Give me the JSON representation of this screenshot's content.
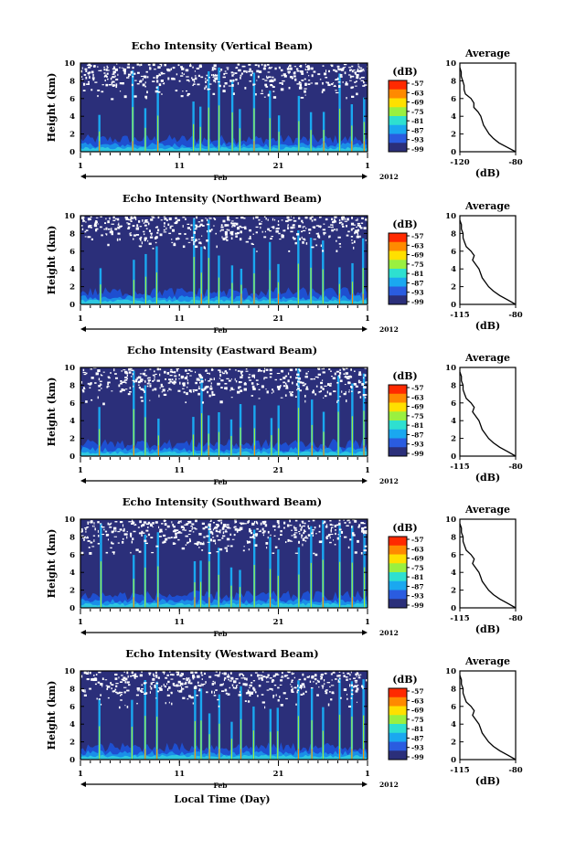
{
  "chart_data": {
    "type": "heatmap",
    "x_axis": {
      "label": "Local Time (Day)",
      "month_label": "Feb",
      "year_label": "2012",
      "ticks": [
        "1",
        "11",
        "21",
        "1"
      ],
      "range_days": [
        1,
        30
      ]
    },
    "y_axis": {
      "label": "Height (km)",
      "ticks": [
        "0",
        "2",
        "4",
        "6",
        "8",
        "10"
      ],
      "range": [
        0,
        10
      ]
    },
    "colorbar": {
      "label": "(dB)",
      "ticks": [
        "-57",
        "-63",
        "-69",
        "-75",
        "-81",
        "-87",
        "-93",
        "-99"
      ],
      "colors": [
        "#ff2a00",
        "#ff8a00",
        "#ffe000",
        "#9af040",
        "#2ee0d0",
        "#1aa8f0",
        "#2a5ce0",
        "#2b2f7a"
      ]
    },
    "panels": [
      {
        "title": "Echo Intensity (Vertical Beam)",
        "avg_title": "Average",
        "avg_xlabel": "(dB)",
        "avg_xticks": [
          "-120",
          "-80"
        ],
        "avg_xrange": [
          -120,
          -80
        ],
        "avg_profile": [
          [
            0,
            -80
          ],
          [
            0.5,
            -86
          ],
          [
            1.0,
            -92
          ],
          [
            1.5,
            -96
          ],
          [
            2.0,
            -99
          ],
          [
            2.5,
            -101
          ],
          [
            3.0,
            -103
          ],
          [
            3.5,
            -104
          ],
          [
            4.0,
            -105
          ],
          [
            4.5,
            -107
          ],
          [
            5.0,
            -110
          ],
          [
            5.5,
            -110
          ],
          [
            6.0,
            -112
          ],
          [
            6.5,
            -116
          ],
          [
            7.0,
            -117
          ],
          [
            7.5,
            -117
          ],
          [
            8.0,
            -118
          ],
          [
            8.5,
            -119
          ],
          [
            9.0,
            -119
          ],
          [
            9.5,
            -120
          ]
        ]
      },
      {
        "title": "Echo Intensity (Northward Beam)",
        "avg_title": "Average",
        "avg_xlabel": "(dB)",
        "avg_xticks": [
          "-115",
          "-80"
        ],
        "avg_xrange": [
          -115,
          -80
        ],
        "avg_profile": [
          [
            0,
            -80
          ],
          [
            0.5,
            -85
          ],
          [
            1.0,
            -90
          ],
          [
            1.5,
            -94
          ],
          [
            2.0,
            -97
          ],
          [
            2.5,
            -99
          ],
          [
            3.0,
            -101
          ],
          [
            3.5,
            -102
          ],
          [
            4.0,
            -103
          ],
          [
            4.5,
            -105
          ],
          [
            5.0,
            -107
          ],
          [
            5.5,
            -106
          ],
          [
            6.0,
            -108
          ],
          [
            6.5,
            -111
          ],
          [
            7.0,
            -112
          ],
          [
            7.5,
            -113
          ],
          [
            8.0,
            -113
          ],
          [
            8.5,
            -114
          ],
          [
            9.0,
            -114
          ],
          [
            9.5,
            -115
          ]
        ]
      },
      {
        "title": "Echo Intensity (Eastward Beam)",
        "avg_title": "Average",
        "avg_xlabel": "(dB)",
        "avg_xticks": [
          "-115",
          "-80"
        ],
        "avg_xrange": [
          -115,
          -80
        ],
        "avg_profile": [
          [
            0,
            -80
          ],
          [
            0.5,
            -85
          ],
          [
            1.0,
            -90
          ],
          [
            1.5,
            -94
          ],
          [
            2.0,
            -97
          ],
          [
            2.5,
            -99
          ],
          [
            3.0,
            -101
          ],
          [
            3.5,
            -102
          ],
          [
            4.0,
            -103
          ],
          [
            4.5,
            -105
          ],
          [
            5.0,
            -107
          ],
          [
            5.5,
            -106
          ],
          [
            6.0,
            -108
          ],
          [
            6.5,
            -111
          ],
          [
            7.0,
            -112
          ],
          [
            7.5,
            -113
          ],
          [
            8.0,
            -113
          ],
          [
            8.5,
            -114
          ],
          [
            9.0,
            -114
          ],
          [
            9.5,
            -115
          ]
        ]
      },
      {
        "title": "Echo Intensity (Southward Beam)",
        "avg_title": "Average",
        "avg_xlabel": "(dB)",
        "avg_xticks": [
          "-115",
          "-80"
        ],
        "avg_xrange": [
          -115,
          -80
        ],
        "avg_profile": [
          [
            0,
            -80
          ],
          [
            0.5,
            -85
          ],
          [
            1.0,
            -90
          ],
          [
            1.5,
            -94
          ],
          [
            2.0,
            -97
          ],
          [
            2.5,
            -99
          ],
          [
            3.0,
            -101
          ],
          [
            3.5,
            -102
          ],
          [
            4.0,
            -103
          ],
          [
            4.5,
            -105
          ],
          [
            5.0,
            -107
          ],
          [
            5.5,
            -106
          ],
          [
            6.0,
            -108
          ],
          [
            6.5,
            -111
          ],
          [
            7.0,
            -112
          ],
          [
            7.5,
            -113
          ],
          [
            8.0,
            -113
          ],
          [
            8.5,
            -114
          ],
          [
            9.0,
            -114
          ],
          [
            9.5,
            -115
          ]
        ]
      },
      {
        "title": "Echo Intensity (Westward Beam)",
        "avg_title": "Average",
        "avg_xlabel": "(dB)",
        "avg_xticks": [
          "-115",
          "-80"
        ],
        "avg_xrange": [
          -115,
          -80
        ],
        "avg_profile": [
          [
            0,
            -80
          ],
          [
            0.5,
            -85
          ],
          [
            1.0,
            -90
          ],
          [
            1.5,
            -94
          ],
          [
            2.0,
            -97
          ],
          [
            2.5,
            -99
          ],
          [
            3.0,
            -101
          ],
          [
            3.5,
            -102
          ],
          [
            4.0,
            -103
          ],
          [
            4.5,
            -105
          ],
          [
            5.0,
            -107
          ],
          [
            5.5,
            -106
          ],
          [
            6.0,
            -108
          ],
          [
            6.5,
            -111
          ],
          [
            7.0,
            -112
          ],
          [
            7.5,
            -113
          ],
          [
            8.0,
            -113
          ],
          [
            8.5,
            -114
          ],
          [
            9.0,
            -114
          ],
          [
            9.5,
            -115
          ]
        ]
      }
    ],
    "echo_spikes_day": [
      3.0,
      6.3,
      7.6,
      8.8,
      12.5,
      13.2,
      14.0,
      15.0,
      16.3,
      17.2,
      18.5,
      20.2,
      21.0,
      23.1,
      24.3,
      25.5,
      27.1,
      28.5,
      29.6
    ]
  }
}
